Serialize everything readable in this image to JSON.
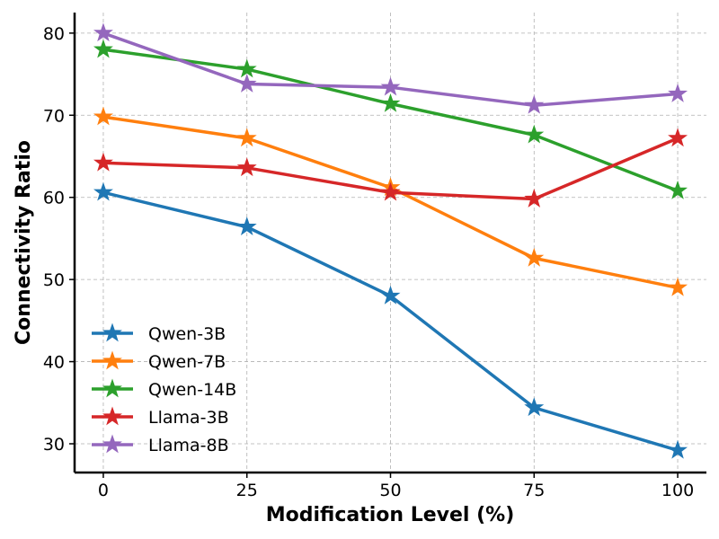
{
  "chart_data": {
    "type": "line",
    "title": "",
    "xlabel": "Modification Level (%)",
    "ylabel": "Connectivity Ratio",
    "x": [
      0,
      25,
      50,
      75,
      100
    ],
    "xticks": [
      "0",
      "25",
      "50",
      "75",
      "100"
    ],
    "yticks": [
      "30",
      "40",
      "50",
      "60",
      "70",
      "80"
    ],
    "xlim": [
      -5,
      105
    ],
    "ylim": [
      26.5,
      82.5
    ],
    "grid": true,
    "legend_position": "lower-left",
    "marker": "star",
    "series": [
      {
        "name": "Qwen-3B",
        "color": "#1f77b4",
        "values": [
          60.6,
          56.4,
          48.0,
          34.4,
          29.2
        ]
      },
      {
        "name": "Qwen-7B",
        "color": "#ff7f0e",
        "values": [
          69.8,
          67.2,
          61.2,
          52.6,
          49.0
        ]
      },
      {
        "name": "Qwen-14B",
        "color": "#2ca02c",
        "values": [
          78.0,
          75.6,
          71.4,
          67.6,
          60.8
        ]
      },
      {
        "name": "Llama-3B",
        "color": "#d62728",
        "values": [
          64.2,
          63.6,
          60.6,
          59.8,
          67.2
        ]
      },
      {
        "name": "Llama-8B",
        "color": "#9467bd",
        "values": [
          80.0,
          73.8,
          73.4,
          71.2,
          72.6
        ]
      }
    ]
  }
}
